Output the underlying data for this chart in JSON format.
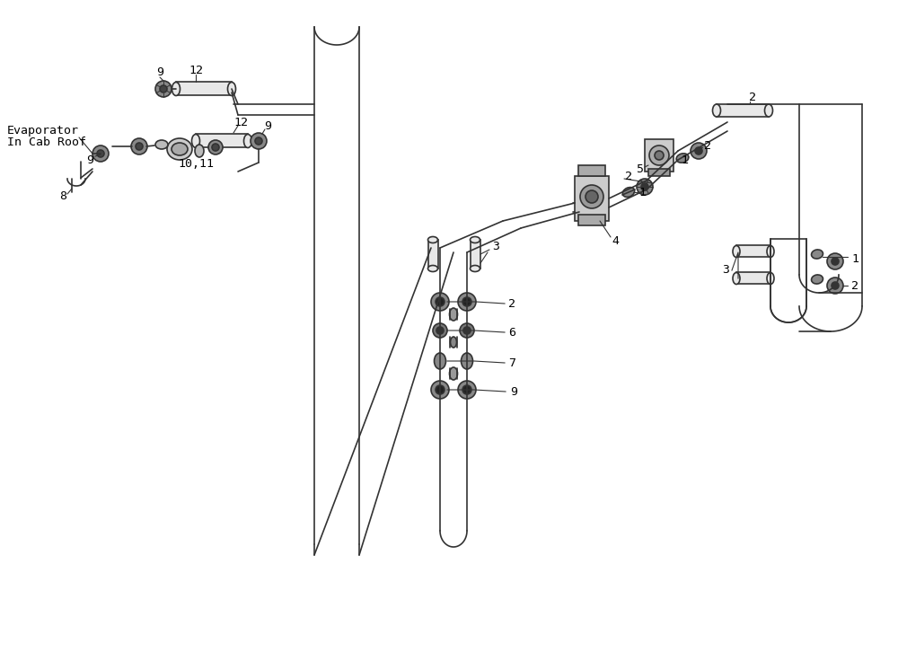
{
  "bg_color": "#ffffff",
  "line_color": "#333333",
  "text_color": "#000000",
  "figsize": [
    10.0,
    7.36
  ],
  "dpi": 100
}
